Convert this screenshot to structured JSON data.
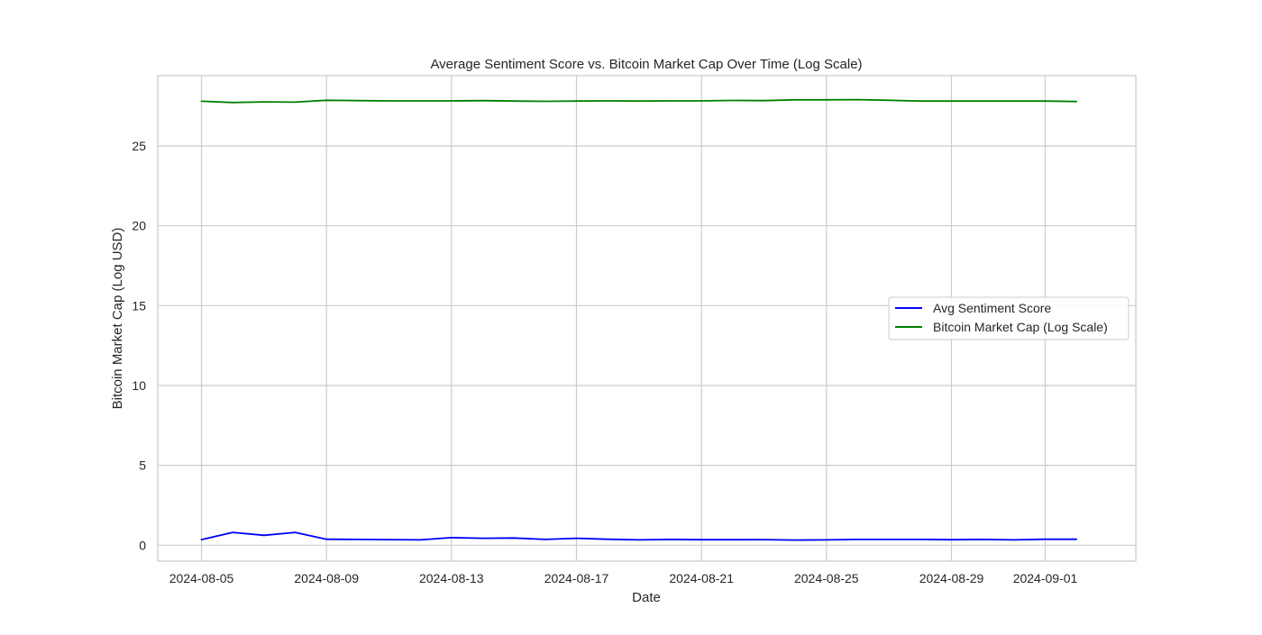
{
  "chart_data": {
    "type": "line",
    "title": "Average Sentiment Score vs. Bitcoin Market Cap Over Time (Log Scale)",
    "xlabel": "Date",
    "ylabel": "Bitcoin Market Cap (Log USD)",
    "x_start": "2024-08-05",
    "x_end": "2024-09-02",
    "xlim": [
      "2024-08-03T14:24",
      "2024-09-03T21:36"
    ],
    "ylim": [
      -1.0,
      29.4
    ],
    "x_ticks": [
      "2024-08-05",
      "2024-08-09",
      "2024-08-13",
      "2024-08-17",
      "2024-08-21",
      "2024-08-25",
      "2024-08-29",
      "2024-09-01"
    ],
    "y_ticks": [
      0,
      5,
      10,
      15,
      20,
      25
    ],
    "grid": true,
    "legend_position": "center-right",
    "x": [
      "2024-08-05",
      "2024-08-06",
      "2024-08-07",
      "2024-08-08",
      "2024-08-09",
      "2024-08-10",
      "2024-08-11",
      "2024-08-12",
      "2024-08-13",
      "2024-08-14",
      "2024-08-15",
      "2024-08-16",
      "2024-08-17",
      "2024-08-18",
      "2024-08-19",
      "2024-08-20",
      "2024-08-21",
      "2024-08-22",
      "2024-08-23",
      "2024-08-24",
      "2024-08-25",
      "2024-08-26",
      "2024-08-27",
      "2024-08-28",
      "2024-08-29",
      "2024-08-30",
      "2024-08-31",
      "2024-09-01",
      "2024-09-02"
    ],
    "series": [
      {
        "name": "Avg Sentiment Score",
        "color": "#0000ff",
        "values": [
          0.35,
          0.8,
          0.62,
          0.8,
          0.37,
          0.36,
          0.35,
          0.33,
          0.47,
          0.43,
          0.45,
          0.36,
          0.43,
          0.37,
          0.33,
          0.36,
          0.34,
          0.34,
          0.35,
          0.32,
          0.33,
          0.36,
          0.36,
          0.36,
          0.34,
          0.36,
          0.33,
          0.37,
          0.37
        ]
      },
      {
        "name": "Bitcoin Market Cap (Log Scale)",
        "color": "#008000",
        "values": [
          27.8,
          27.72,
          27.76,
          27.74,
          27.86,
          27.84,
          27.82,
          27.82,
          27.82,
          27.84,
          27.81,
          27.79,
          27.81,
          27.82,
          27.81,
          27.82,
          27.82,
          27.85,
          27.84,
          27.89,
          27.89,
          27.9,
          27.86,
          27.81,
          27.81,
          27.81,
          27.81,
          27.81,
          27.78
        ]
      }
    ]
  }
}
